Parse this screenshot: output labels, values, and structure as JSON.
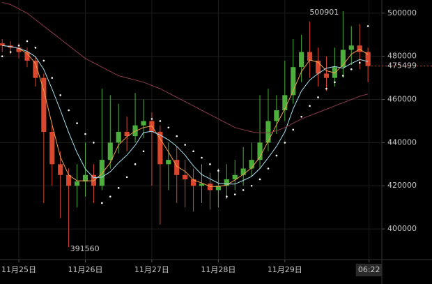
{
  "chart_data": {
    "type": "candlestick",
    "x": [
      -6,
      -3,
      0,
      3,
      6,
      9,
      12,
      15,
      18,
      21,
      24,
      27,
      30,
      33,
      36,
      39,
      42,
      45,
      48,
      51,
      54,
      57,
      60,
      63,
      66,
      69,
      72,
      75,
      78,
      81,
      84,
      87,
      90,
      93,
      96,
      99,
      102,
      105,
      108,
      111,
      114,
      117,
      120,
      123,
      126
    ],
    "open": [
      486000,
      485000,
      484000,
      482000,
      478000,
      470000,
      445000,
      430000,
      425000,
      420000,
      422000,
      425000,
      420000,
      432000,
      440000,
      445000,
      443000,
      448000,
      450000,
      445000,
      430000,
      432000,
      425000,
      423000,
      420000,
      421000,
      418000,
      420000,
      423000,
      425000,
      428000,
      432000,
      440000,
      450000,
      455000,
      462000,
      475000,
      482000,
      478000,
      472000,
      470000,
      475000,
      483000,
      485000,
      482000
    ],
    "high": [
      488000,
      487000,
      486000,
      484000,
      480000,
      472000,
      448000,
      436000,
      428000,
      430000,
      440000,
      430000,
      465000,
      462000,
      458000,
      452000,
      463000,
      460000,
      454000,
      448000,
      440000,
      438000,
      432000,
      428000,
      430000,
      426000,
      428000,
      430000,
      432000,
      438000,
      440000,
      462000,
      465000,
      462000,
      478000,
      488000,
      490000,
      496000,
      484000,
      480000,
      484000,
      500901,
      494000,
      495000,
      484000
    ],
    "low": [
      482000,
      481000,
      479000,
      475000,
      466000,
      412000,
      420000,
      405000,
      391560,
      410000,
      415000,
      412000,
      418000,
      428000,
      435000,
      436000,
      440000,
      442000,
      420000,
      402000,
      418000,
      412000,
      410000,
      408000,
      412000,
      409000,
      410000,
      414000,
      418000,
      420000,
      424000,
      428000,
      436000,
      444000,
      450000,
      458000,
      468000,
      470000,
      466000,
      464000,
      466000,
      470000,
      476000,
      474000,
      468000
    ],
    "close": [
      485000,
      484000,
      482000,
      478000,
      470000,
      445000,
      430000,
      425000,
      420000,
      422000,
      425000,
      420000,
      432000,
      440000,
      445000,
      443000,
      448000,
      450000,
      445000,
      430000,
      432000,
      425000,
      423000,
      420000,
      421000,
      418000,
      420000,
      423000,
      425000,
      428000,
      432000,
      440000,
      450000,
      455000,
      462000,
      475000,
      482000,
      478000,
      472000,
      470000,
      475000,
      483000,
      485000,
      482000,
      475499
    ],
    "up_color": "#4caf3c",
    "down_color": "#d9472f",
    "lines": [
      {
        "color": "#f0a050",
        "style": "solid",
        "values": [
          485000,
          484500,
          483700,
          481300,
          476700,
          464300,
          448300,
          433300,
          425000,
          422300,
          422300,
          422300,
          425700,
          430700,
          439000,
          442700,
          445300,
          447000,
          447700,
          441700,
          435700,
          429000,
          426700,
          422700,
          421300,
          419700,
          419700,
          420300,
          422700,
          425300,
          428300,
          433300,
          440700,
          448300,
          455700,
          464000,
          473000,
          478300,
          477300,
          473300,
          472300,
          476000,
          481000,
          483300,
          480800
        ]
      },
      {
        "color": "#a8e0f0",
        "style": "solid",
        "values": [
          485000,
          484500,
          483700,
          482300,
          479800,
          474000,
          464800,
          455000,
          444700,
          435300,
          427800,
          423700,
          424000,
          426500,
          430700,
          434200,
          438800,
          444700,
          445200,
          443500,
          441300,
          438300,
          434200,
          429200,
          425200,
          423200,
          421200,
          420800,
          420800,
          422500,
          424300,
          428000,
          433000,
          438300,
          445000,
          455700,
          464000,
          469000,
          472000,
          474500,
          475300,
          474500,
          476700,
          478500,
          477600
        ]
      },
      {
        "color": "#8a3a4a",
        "style": "solid",
        "values": [
          505000,
          504000,
          502000,
          500000,
          497000,
          494000,
          491000,
          488000,
          485000,
          482000,
          479000,
          477000,
          475000,
          473000,
          471000,
          470000,
          469000,
          468000,
          466500,
          465000,
          463000,
          461000,
          459000,
          457000,
          455000,
          453000,
          451000,
          449000,
          447000,
          446000,
          445000,
          444500,
          444500,
          445500,
          447000,
          449000,
          451000,
          452500,
          454000,
          455500,
          457000,
          458500,
          460000,
          461500,
          462500
        ]
      },
      {
        "color": "#ffffff",
        "style": "dots",
        "values": [
          480000,
          482000,
          485000,
          487000,
          484000,
          478000,
          470000,
          462000,
          455000,
          449000,
          444000,
          440000,
          412000,
          415000,
          419000,
          424000,
          430000,
          436000,
          451000,
          450000,
          447000,
          443000,
          439000,
          436000,
          433000,
          430000,
          427000,
          415000,
          416000,
          418000,
          420000,
          423000,
          428000,
          434000,
          440000,
          446000,
          452000,
          457000,
          461000,
          465000,
          468000,
          471000,
          474000,
          477000,
          494000
        ]
      }
    ],
    "annotations": [
      {
        "x": 117,
        "value": 500901
      },
      {
        "x": 18,
        "value": 391560
      }
    ],
    "last_price": 475499,
    "last_price_color": "#d9472f",
    "xlim": [
      -6.8,
      131
    ],
    "xticks": [
      {
        "value": 0,
        "label": "11月25日"
      },
      {
        "value": 24,
        "label": "11月26日"
      },
      {
        "value": 48,
        "label": "11月27日"
      },
      {
        "value": 72,
        "label": "11月28日"
      },
      {
        "value": 96,
        "label": "11月29日"
      },
      {
        "value": 126.4,
        "label": "06:22"
      }
    ],
    "ylim": [
      385800,
      506100
    ],
    "yticks": [
      400000,
      420000,
      440000,
      460000,
      480000,
      500000
    ],
    "grid": true
  }
}
